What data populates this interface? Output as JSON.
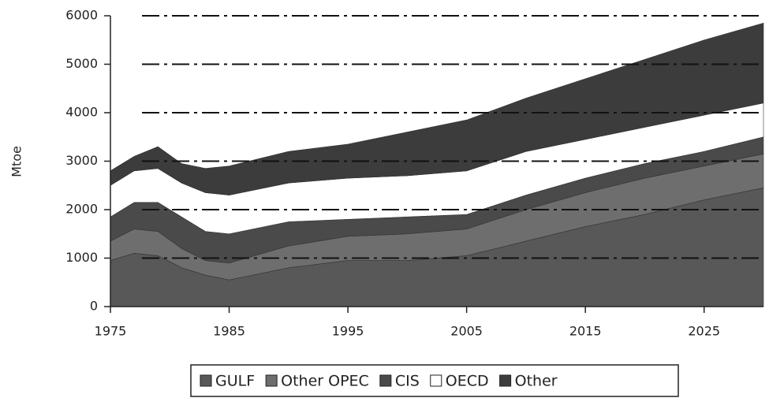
{
  "chart_data": {
    "type": "stacked_area",
    "y_label": "Mtoe",
    "x": [
      1975,
      1977,
      1979,
      1981,
      1983,
      1985,
      1990,
      1995,
      2000,
      2005,
      2010,
      2015,
      2020,
      2025,
      2030
    ],
    "series": [
      {
        "name": "GULF",
        "color": "#585858",
        "values": [
          950,
          1100,
          1050,
          800,
          650,
          550,
          800,
          950,
          950,
          1050,
          1350,
          1650,
          1900,
          2200,
          2450
        ]
      },
      {
        "name": "Other OPEC",
        "color": "#6e6e6e",
        "values": [
          400,
          500,
          500,
          400,
          300,
          350,
          450,
          500,
          550,
          550,
          650,
          700,
          750,
          700,
          700
        ]
      },
      {
        "name": "CIS",
        "color": "#4a4a4a",
        "values": [
          500,
          550,
          600,
          650,
          600,
          600,
          500,
          350,
          350,
          300,
          300,
          300,
          300,
          300,
          350
        ]
      },
      {
        "name": "OECD",
        "color": "#ffffff",
        "values": [
          650,
          650,
          700,
          700,
          800,
          800,
          800,
          850,
          850,
          900,
          900,
          800,
          750,
          750,
          700
        ]
      },
      {
        "name": "Other",
        "color": "#3c3c3c",
        "values": [
          300,
          300,
          450,
          400,
          500,
          600,
          650,
          700,
          900,
          1050,
          1100,
          1250,
          1400,
          1550,
          1650
        ]
      }
    ],
    "xlim": [
      1975,
      2030
    ],
    "xticks": [
      1975,
      1985,
      1995,
      2005,
      2015,
      2025
    ],
    "ylim": [
      0,
      6000
    ],
    "yticks": [
      0,
      1000,
      2000,
      3000,
      4000,
      5000,
      6000
    ],
    "grid": true,
    "legend": "bottom"
  }
}
